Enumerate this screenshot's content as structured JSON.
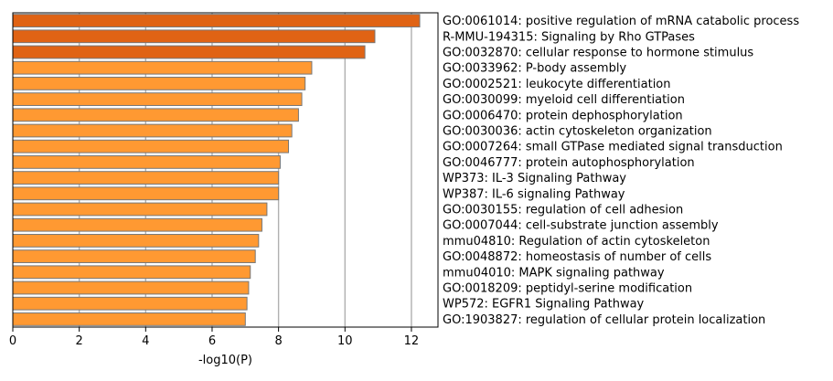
{
  "chart_data": {
    "type": "bar",
    "orientation": "horizontal",
    "title": "",
    "xlabel": "-log10(P)",
    "ylabel": "",
    "xlim": [
      0,
      12.8
    ],
    "xticks": [
      0,
      2,
      4,
      6,
      8,
      10,
      12
    ],
    "grid": "vertical",
    "legend": "none",
    "colors": {
      "top": "#e06314",
      "rest": "#ff9932",
      "edge": "#777777",
      "grid": "#b0b0b0"
    },
    "categories": [
      "GO:0061014: positive regulation of mRNA catabolic process",
      "R-MMU-194315: Signaling by Rho GTPases",
      "GO:0032870: cellular response to hormone stimulus",
      "GO:0033962: P-body assembly",
      "GO:0002521: leukocyte differentiation",
      "GO:0030099: myeloid cell differentiation",
      "GO:0006470: protein dephosphorylation",
      "GO:0030036: actin cytoskeleton organization",
      "GO:0007264: small GTPase mediated signal transduction",
      "GO:0046777: protein autophosphorylation",
      "WP373: IL-3 Signaling Pathway",
      "WP387: IL-6 signaling Pathway",
      "GO:0030155: regulation of cell adhesion",
      "GO:0007044: cell-substrate junction assembly",
      "mmu04810: Regulation of actin cytoskeleton",
      "GO:0048872: homeostasis of number of cells",
      "mmu04010: MAPK signaling pathway",
      "GO:0018209: peptidyl-serine modification",
      "WP572: EGFR1 Signaling Pathway",
      "GO:1903827: regulation of cellular protein localization"
    ],
    "values": [
      12.25,
      10.9,
      10.6,
      9.0,
      8.8,
      8.7,
      8.6,
      8.4,
      8.3,
      8.05,
      8.0,
      8.0,
      7.65,
      7.5,
      7.4,
      7.3,
      7.15,
      7.1,
      7.05,
      7.0
    ],
    "highlighted_count": 3
  }
}
